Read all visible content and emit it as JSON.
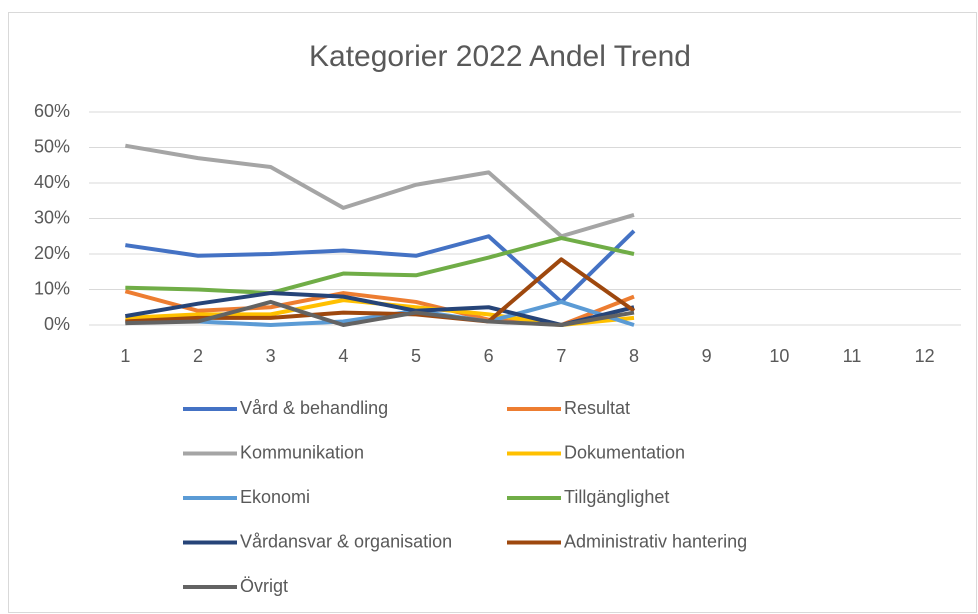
{
  "chart_data": {
    "type": "line",
    "title": "Kategorier 2022 Andel Trend",
    "categories": [
      "1",
      "2",
      "3",
      "4",
      "5",
      "6",
      "7",
      "8",
      "9",
      "10",
      "11",
      "12"
    ],
    "ylim": [
      0,
      60
    ],
    "yticks": [
      {
        "value": 0,
        "label": "0%"
      },
      {
        "value": 10,
        "label": "10%"
      },
      {
        "value": 20,
        "label": "20%"
      },
      {
        "value": 30,
        "label": "30%"
      },
      {
        "value": 40,
        "label": "40%"
      },
      {
        "value": 50,
        "label": "50%"
      },
      {
        "value": 60,
        "label": "60%"
      }
    ],
    "grid": true,
    "legend": "bottom",
    "series": [
      {
        "name": "Vård & behandling",
        "color": "#4472c4",
        "values": [
          22.5,
          19.5,
          20,
          21,
          19.5,
          25,
          6.5,
          26.5,
          null,
          null,
          null,
          null
        ]
      },
      {
        "name": "Resultat",
        "color": "#ed7d31",
        "values": [
          9.5,
          4,
          5,
          9,
          6.5,
          1.5,
          0,
          8,
          null,
          null,
          null,
          null
        ]
      },
      {
        "name": "Kommunikation",
        "color": "#a5a5a5",
        "values": [
          50.5,
          47,
          44.5,
          33,
          39.5,
          43,
          25,
          31,
          null,
          null,
          null,
          null
        ]
      },
      {
        "name": "Dokumentation",
        "color": "#ffc000",
        "values": [
          2,
          3,
          3,
          7,
          5,
          3,
          0,
          2,
          null,
          null,
          null,
          null
        ]
      },
      {
        "name": "Ekonomi",
        "color": "#5b9bd5",
        "values": [
          1,
          1,
          0,
          1,
          4,
          1,
          6.5,
          0,
          null,
          null,
          null,
          null
        ]
      },
      {
        "name": "Tillgänglighet",
        "color": "#70ad47",
        "values": [
          10.5,
          10,
          9,
          14.5,
          14,
          19,
          24.5,
          20,
          null,
          null,
          null,
          null
        ]
      },
      {
        "name": "Vårdansvar & organisation",
        "color": "#264478",
        "values": [
          2.5,
          6,
          9,
          8,
          4,
          5,
          0,
          5,
          null,
          null,
          null,
          null
        ]
      },
      {
        "name": "Administrativ hantering",
        "color": "#9e480e",
        "values": [
          1,
          2,
          2,
          3.5,
          3,
          1,
          18.5,
          4,
          null,
          null,
          null,
          null
        ]
      },
      {
        "name": "Övrigt",
        "color": "#636363",
        "values": [
          0.5,
          1,
          6.5,
          0,
          3.5,
          1,
          0,
          3.5,
          null,
          null,
          null,
          null
        ]
      }
    ]
  }
}
